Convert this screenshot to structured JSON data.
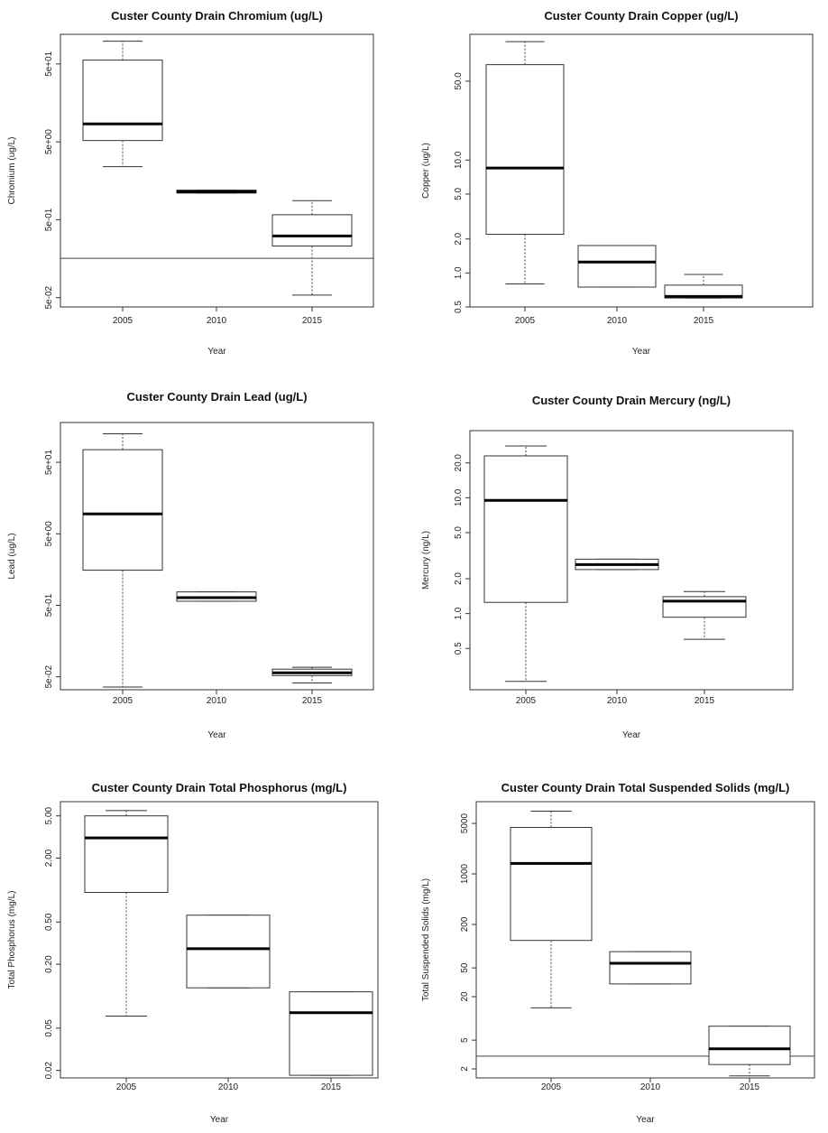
{
  "chart_data": [
    {
      "type": "boxplot",
      "title": "Custer County Drain Chromium (ug/L)",
      "xlabel": "Year",
      "ylabel": "Chromium (ug/L)",
      "log_y": true,
      "ylim": [
        0.038,
        120
      ],
      "yticks": [
        {
          "value": 0.05,
          "label": "5e-02"
        },
        {
          "value": 0.5,
          "label": "5e-01"
        },
        {
          "value": 5,
          "label": "5e+00"
        },
        {
          "value": 50,
          "label": "5e+01"
        }
      ],
      "categories": [
        "2005",
        "2010",
        "2015"
      ],
      "boxes": [
        {
          "whisker_low": 2.4,
          "q1": 5.2,
          "median": 8.5,
          "q3": 56,
          "whisker_high": 98
        },
        {
          "whisker_low": 1.1,
          "q1": 1.1,
          "median": 1.15,
          "q3": 1.2,
          "whisker_high": 1.2
        },
        {
          "whisker_low": 0.054,
          "q1": 0.23,
          "median": 0.31,
          "q3": 0.58,
          "whisker_high": 0.88
        }
      ],
      "hline": 0.16
    },
    {
      "type": "boxplot",
      "title": "Custer County Drain Copper (ug/L)",
      "xlabel": "Year",
      "ylabel": "Copper (ug/L)",
      "log_y": true,
      "ylim": [
        0.5,
        130
      ],
      "yticks": [
        {
          "value": 0.5,
          "label": "0.5"
        },
        {
          "value": 1,
          "label": "1.0"
        },
        {
          "value": 2,
          "label": "2.0"
        },
        {
          "value": 5,
          "label": "5.0"
        },
        {
          "value": 10,
          "label": "10.0"
        },
        {
          "value": 50,
          "label": "50.0"
        }
      ],
      "categories": [
        "2005",
        "2010",
        "2015"
      ],
      "boxes": [
        {
          "whisker_low": 0.8,
          "q1": 2.2,
          "median": 8.5,
          "q3": 70,
          "whisker_high": 112
        },
        {
          "whisker_low": 0.75,
          "q1": 0.75,
          "median": 1.25,
          "q3": 1.75,
          "whisker_high": 1.75
        },
        {
          "whisker_low": 0.6,
          "q1": 0.6,
          "median": 0.62,
          "q3": 0.78,
          "whisker_high": 0.97
        }
      ]
    },
    {
      "type": "boxplot",
      "title": "Custer County Drain Lead (ug/L)",
      "xlabel": "Year",
      "ylabel": "Lead (ug/L)",
      "log_y": true,
      "ylim": [
        0.033,
        180
      ],
      "yticks": [
        {
          "value": 0.05,
          "label": "5e-02"
        },
        {
          "value": 0.5,
          "label": "5e-01"
        },
        {
          "value": 5,
          "label": "5e+00"
        },
        {
          "value": 50,
          "label": "5e+01"
        }
      ],
      "categories": [
        "2005",
        "2010",
        "2015"
      ],
      "boxes": [
        {
          "whisker_low": 0.036,
          "q1": 1.55,
          "median": 9.5,
          "q3": 75,
          "whisker_high": 125
        },
        {
          "whisker_low": 0.57,
          "q1": 0.57,
          "median": 0.64,
          "q3": 0.77,
          "whisker_high": 0.77
        },
        {
          "whisker_low": 0.041,
          "q1": 0.052,
          "median": 0.057,
          "q3": 0.064,
          "whisker_high": 0.068
        }
      ]
    },
    {
      "type": "boxplot",
      "title": "Custer County Drain Mercury (ng/L)",
      "xlabel": "Year",
      "ylabel": "Mercury (ng/L)",
      "log_y": true,
      "ylim": [
        0.22,
        38
      ],
      "yticks": [
        {
          "value": 0.5,
          "label": "0.5"
        },
        {
          "value": 1,
          "label": "1.0"
        },
        {
          "value": 2,
          "label": "2.0"
        },
        {
          "value": 5,
          "label": "5.0"
        },
        {
          "value": 10,
          "label": "10.0"
        },
        {
          "value": 20,
          "label": "20.0"
        }
      ],
      "categories": [
        "2005",
        "2010",
        "2015"
      ],
      "boxes": [
        {
          "whisker_low": 0.26,
          "q1": 1.25,
          "median": 9.5,
          "q3": 23,
          "whisker_high": 28
        },
        {
          "whisker_low": 2.4,
          "q1": 2.4,
          "median": 2.65,
          "q3": 2.95,
          "whisker_high": 2.95
        },
        {
          "whisker_low": 0.6,
          "q1": 0.93,
          "median": 1.28,
          "q3": 1.4,
          "whisker_high": 1.55
        }
      ]
    },
    {
      "type": "boxplot",
      "title": "Custer County Drain Total Phosphorus (mg/L)",
      "xlabel": "Year",
      "ylabel": "Total Phosphorus (mg/L)",
      "log_y": true,
      "ylim": [
        0.017,
        6.8
      ],
      "yticks": [
        {
          "value": 0.02,
          "label": "0.02"
        },
        {
          "value": 0.05,
          "label": "0.05"
        },
        {
          "value": 0.2,
          "label": "0.20"
        },
        {
          "value": 0.5,
          "label": "0.50"
        },
        {
          "value": 2,
          "label": "2.00"
        },
        {
          "value": 5,
          "label": "5.00"
        }
      ],
      "categories": [
        "2005",
        "2010",
        "2015"
      ],
      "boxes": [
        {
          "whisker_low": 0.065,
          "q1": 0.95,
          "median": 3.1,
          "q3": 5.0,
          "whisker_high": 5.6
        },
        {
          "whisker_low": 0.12,
          "q1": 0.12,
          "median": 0.28,
          "q3": 0.58,
          "whisker_high": 0.58
        },
        {
          "whisker_low": 0.018,
          "q1": 0.018,
          "median": 0.07,
          "q3": 0.11,
          "whisker_high": 0.11
        }
      ]
    },
    {
      "type": "boxplot",
      "title": "Custer County Drain Total Suspended Solids (mg/L)",
      "xlabel": "Year",
      "ylabel": "Total Suspended Solids (mg/L)",
      "log_y": true,
      "ylim": [
        1.5,
        10000
      ],
      "yticks": [
        {
          "value": 2,
          "label": "2"
        },
        {
          "value": 5,
          "label": "5"
        },
        {
          "value": 20,
          "label": "20"
        },
        {
          "value": 50,
          "label": "50"
        },
        {
          "value": 200,
          "label": "200"
        },
        {
          "value": 1000,
          "label": "1000"
        },
        {
          "value": 5000,
          "label": "5000"
        }
      ],
      "categories": [
        "2005",
        "2010",
        "2015"
      ],
      "boxes": [
        {
          "whisker_low": 14,
          "q1": 120,
          "median": 1400,
          "q3": 4400,
          "whisker_high": 7400
        },
        {
          "whisker_low": 30,
          "q1": 30,
          "median": 58,
          "q3": 84,
          "whisker_high": 84
        },
        {
          "whisker_low": 1.6,
          "q1": 2.3,
          "median": 3.8,
          "q3": 7.8,
          "whisker_high": 7.8
        }
      ],
      "hline": 3.0
    }
  ]
}
